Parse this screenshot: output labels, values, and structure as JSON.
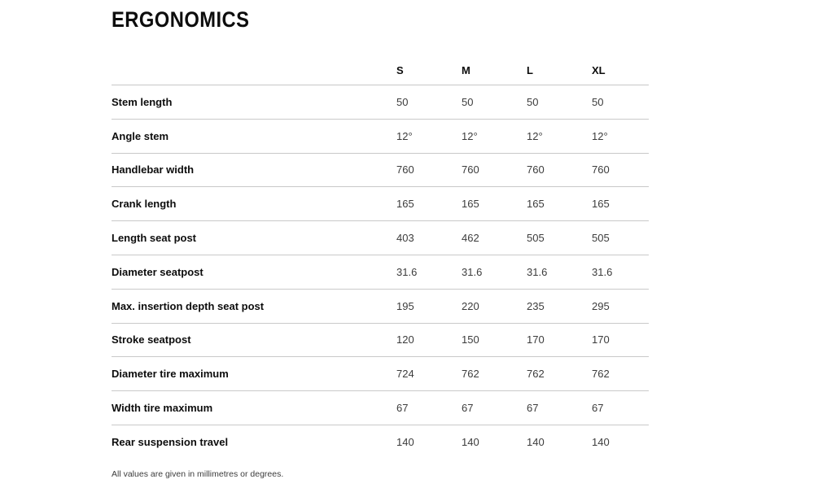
{
  "page": {
    "title": "ERGONOMICS",
    "footnote": "All values are given in millimetres or degrees."
  },
  "chart_data": {
    "type": "table",
    "title": "ERGONOMICS",
    "columns": [
      "S",
      "M",
      "L",
      "XL"
    ],
    "rows": [
      {
        "label": "Stem length",
        "values": [
          "50",
          "50",
          "50",
          "50"
        ]
      },
      {
        "label": "Angle stem",
        "values": [
          "12°",
          "12°",
          "12°",
          "12°"
        ]
      },
      {
        "label": "Handlebar width",
        "values": [
          "760",
          "760",
          "760",
          "760"
        ]
      },
      {
        "label": "Crank length",
        "values": [
          "165",
          "165",
          "165",
          "165"
        ]
      },
      {
        "label": "Length seat post",
        "values": [
          "403",
          "462",
          "505",
          "505"
        ]
      },
      {
        "label": "Diameter seatpost",
        "values": [
          "31.6",
          "31.6",
          "31.6",
          "31.6"
        ]
      },
      {
        "label": "Max. insertion depth seat post",
        "values": [
          "195",
          "220",
          "235",
          "295"
        ]
      },
      {
        "label": "Stroke seatpost",
        "values": [
          "120",
          "150",
          "170",
          "170"
        ]
      },
      {
        "label": "Diameter tire maximum",
        "values": [
          "724",
          "762",
          "762",
          "762"
        ]
      },
      {
        "label": "Width tire maximum",
        "values": [
          "67",
          "67",
          "67",
          "67"
        ]
      },
      {
        "label": "Rear suspension travel",
        "values": [
          "140",
          "140",
          "140",
          "140"
        ]
      }
    ],
    "footnote": "All values are given in millimetres or degrees.",
    "layout": {
      "grid": "horizontal-dividers-only",
      "header_position": "top"
    }
  },
  "colors": {
    "background": "#ffffff",
    "text_primary": "#0d0d0d",
    "text_values": "#3c3c3c",
    "divider": "#c9c9c9"
  }
}
